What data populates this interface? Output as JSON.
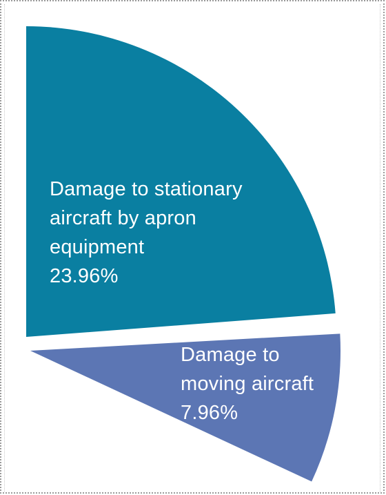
{
  "chart_data": {
    "type": "pie",
    "title": "",
    "slices": [
      {
        "label_lines": [
          "Damage to stationary",
          "aircraft by apron",
          "equipment"
        ],
        "value": 23.96,
        "value_text": "23.96%",
        "color": "#0a7fa1"
      },
      {
        "label_lines": [
          "Damage to",
          "moving aircraft"
        ],
        "value": 7.96,
        "value_text": "7.96%",
        "color": "#5c76b4"
      }
    ]
  }
}
